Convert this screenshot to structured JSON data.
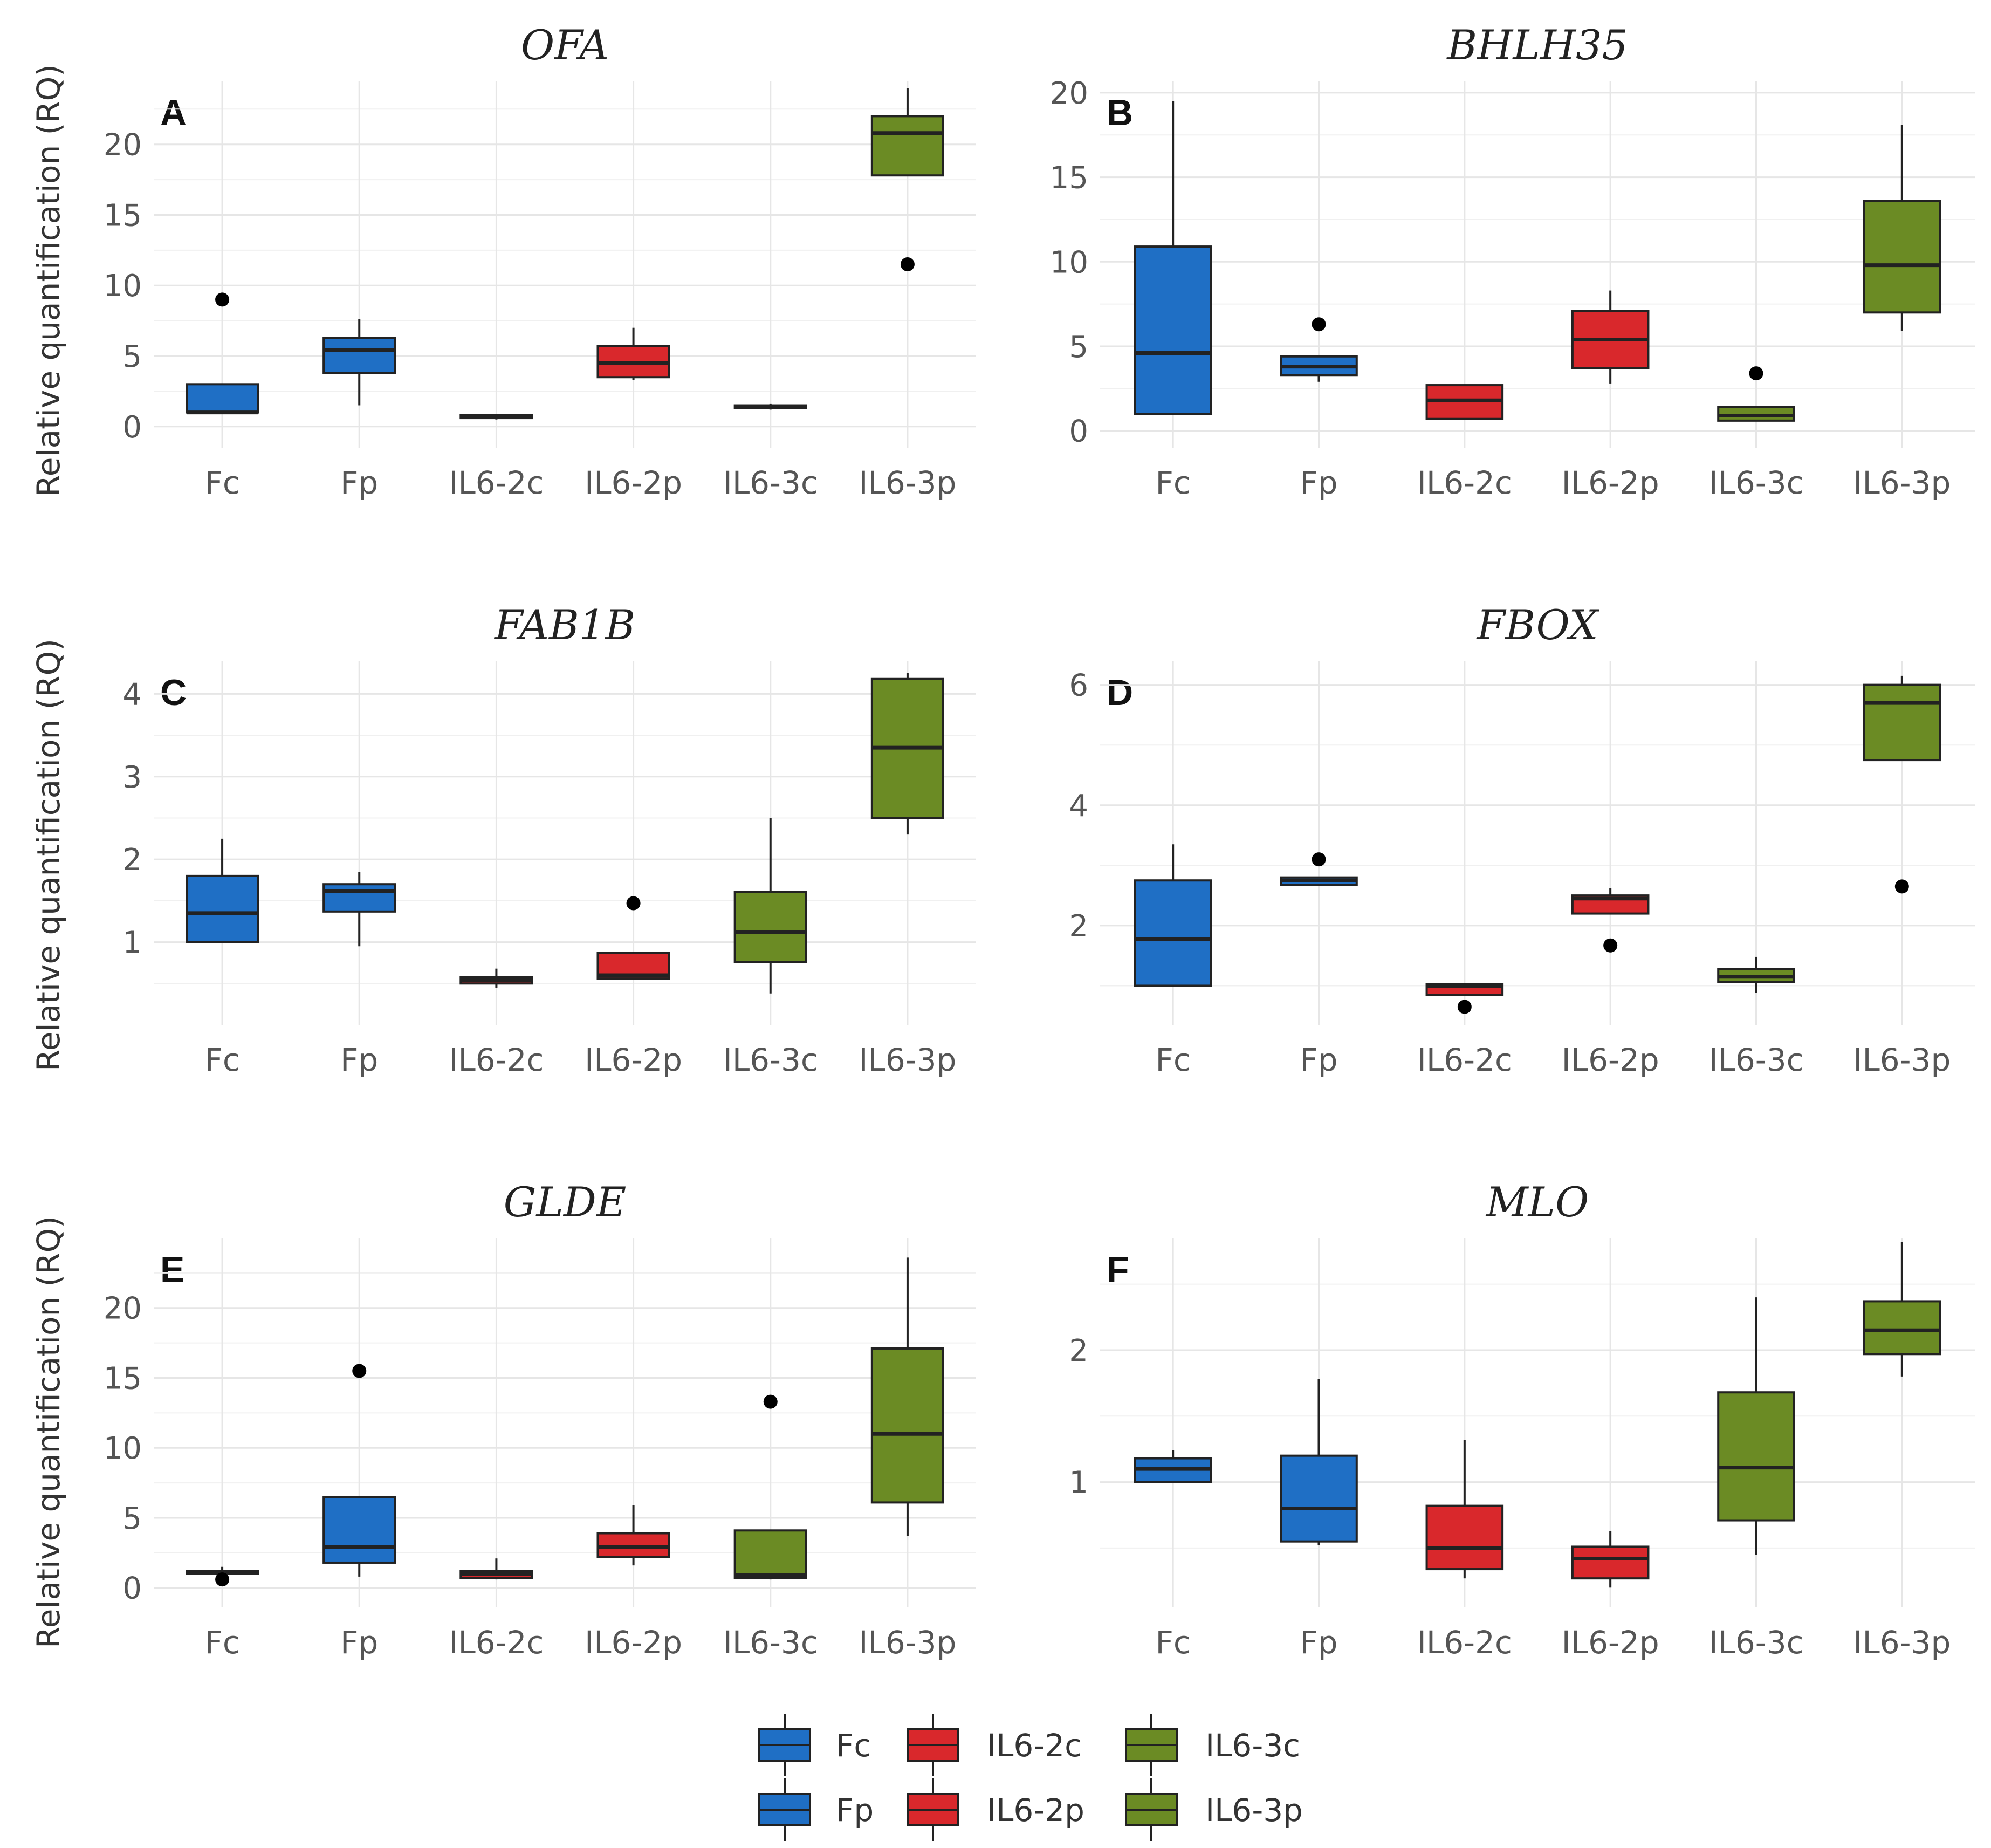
{
  "figure": {
    "y_axis_title": "Relative quantification (RQ)"
  },
  "legend": {
    "items": [
      {
        "label": "Fc",
        "color": "#1f6fc5"
      },
      {
        "label": "Fp",
        "color": "#1f6fc5"
      },
      {
        "label": "IL6-2c",
        "color": "#d9282c"
      },
      {
        "label": "IL6-2p",
        "color": "#d9282c"
      },
      {
        "label": "IL6-3c",
        "color": "#6b8b24"
      },
      {
        "label": "IL6-3p",
        "color": "#6b8b24"
      }
    ]
  },
  "colors": {
    "Fc": "#1f6fc5",
    "Fp": "#1f6fc5",
    "IL6-2c": "#d9282c",
    "IL6-2p": "#d9282c",
    "IL6-3c": "#6b8b24",
    "IL6-3p": "#6b8b24",
    "grid": "#e6e6e6",
    "box_outline": "#222222"
  },
  "chart_data": [
    {
      "type": "boxplot",
      "letter": "A",
      "title": "OFA",
      "ylabel": "Relative quantification (RQ)",
      "categories": [
        "Fc",
        "Fp",
        "IL6-2c",
        "IL6-2p",
        "IL6-3c",
        "IL6-3p"
      ],
      "ylim": [
        -1.5,
        24.5
      ],
      "yticks": [
        0,
        5,
        10,
        15,
        20
      ],
      "boxes": [
        {
          "low": 1.0,
          "q1": 1.0,
          "median": 1.0,
          "q3": 3.0,
          "high": 3.0,
          "outliers": [
            9.0
          ]
        },
        {
          "low": 1.5,
          "q1": 3.8,
          "median": 5.4,
          "q3": 6.3,
          "high": 7.6,
          "outliers": []
        },
        {
          "low": 0.5,
          "q1": 0.6,
          "median": 0.7,
          "q3": 0.8,
          "high": 0.9,
          "outliers": []
        },
        {
          "low": 3.3,
          "q1": 3.5,
          "median": 4.5,
          "q3": 5.7,
          "high": 7.0,
          "outliers": []
        },
        {
          "low": 1.2,
          "q1": 1.3,
          "median": 1.4,
          "q3": 1.5,
          "high": 1.6,
          "outliers": []
        },
        {
          "low": 17.8,
          "q1": 17.8,
          "median": 20.8,
          "q3": 22.0,
          "high": 24.0,
          "outliers": [
            11.5
          ]
        }
      ]
    },
    {
      "type": "boxplot",
      "letter": "B",
      "title": "BHLH35",
      "ylabel": "",
      "categories": [
        "Fc",
        "Fp",
        "IL6-2c",
        "IL6-2p",
        "IL6-3c",
        "IL6-3p"
      ],
      "ylim": [
        -1.0,
        20.7
      ],
      "yticks": [
        0,
        5,
        10,
        15,
        20
      ],
      "boxes": [
        {
          "low": 1.0,
          "q1": 1.0,
          "median": 4.6,
          "q3": 10.9,
          "high": 19.5,
          "outliers": []
        },
        {
          "low": 2.9,
          "q1": 3.3,
          "median": 3.8,
          "q3": 4.4,
          "high": 4.4,
          "outliers": [
            6.3
          ]
        },
        {
          "low": 0.7,
          "q1": 0.7,
          "median": 1.8,
          "q3": 2.7,
          "high": 2.7,
          "outliers": []
        },
        {
          "low": 2.8,
          "q1": 3.7,
          "median": 5.4,
          "q3": 7.1,
          "high": 8.3,
          "outliers": []
        },
        {
          "low": 0.6,
          "q1": 0.6,
          "median": 0.9,
          "q3": 1.4,
          "high": 1.4,
          "outliers": [
            3.4
          ]
        },
        {
          "low": 5.9,
          "q1": 7.0,
          "median": 9.8,
          "q3": 13.6,
          "high": 18.1,
          "outliers": []
        }
      ]
    },
    {
      "type": "boxplot",
      "letter": "C",
      "title": "FAB1B",
      "ylabel": "Relative quantification (RQ)",
      "categories": [
        "Fc",
        "Fp",
        "IL6-2c",
        "IL6-2p",
        "IL6-3c",
        "IL6-3p"
      ],
      "ylim": [
        0.0,
        4.4
      ],
      "yticks": [
        1,
        2,
        3,
        4
      ],
      "boxes": [
        {
          "low": 1.0,
          "q1": 1.0,
          "median": 1.35,
          "q3": 1.8,
          "high": 2.25,
          "outliers": []
        },
        {
          "low": 0.95,
          "q1": 1.37,
          "median": 1.62,
          "q3": 1.7,
          "high": 1.85,
          "outliers": []
        },
        {
          "low": 0.45,
          "q1": 0.5,
          "median": 0.54,
          "q3": 0.58,
          "high": 0.68,
          "outliers": []
        },
        {
          "low": 0.56,
          "q1": 0.56,
          "median": 0.6,
          "q3": 0.87,
          "high": 0.87,
          "outliers": [
            1.47
          ]
        },
        {
          "low": 0.38,
          "q1": 0.76,
          "median": 1.12,
          "q3": 1.61,
          "high": 2.5,
          "outliers": []
        },
        {
          "low": 2.3,
          "q1": 2.5,
          "median": 3.35,
          "q3": 4.18,
          "high": 4.25,
          "outliers": []
        }
      ]
    },
    {
      "type": "boxplot",
      "letter": "D",
      "title": "FBOX",
      "ylabel": "",
      "categories": [
        "Fc",
        "Fp",
        "IL6-2c",
        "IL6-2p",
        "IL6-3c",
        "IL6-3p"
      ],
      "ylim": [
        0.35,
        6.4
      ],
      "yticks": [
        2,
        4,
        6
      ],
      "boxes": [
        {
          "low": 1.0,
          "q1": 1.0,
          "median": 1.78,
          "q3": 2.75,
          "high": 3.35,
          "outliers": []
        },
        {
          "low": 2.68,
          "q1": 2.68,
          "median": 2.75,
          "q3": 2.8,
          "high": 2.8,
          "outliers": [
            3.1
          ]
        },
        {
          "low": 0.85,
          "q1": 0.85,
          "median": 1.0,
          "q3": 1.03,
          "high": 1.03,
          "outliers": [
            0.65
          ]
        },
        {
          "low": 2.2,
          "q1": 2.2,
          "median": 2.45,
          "q3": 2.5,
          "high": 2.62,
          "outliers": [
            1.67
          ]
        },
        {
          "low": 0.88,
          "q1": 1.06,
          "median": 1.15,
          "q3": 1.28,
          "high": 1.48,
          "outliers": []
        },
        {
          "low": 4.75,
          "q1": 4.75,
          "median": 5.7,
          "q3": 6.0,
          "high": 6.15,
          "outliers": [
            2.65
          ]
        }
      ]
    },
    {
      "type": "boxplot",
      "letter": "E",
      "title": "GLDE",
      "ylabel": "Relative quantification (RQ)",
      "categories": [
        "Fc",
        "Fp",
        "IL6-2c",
        "IL6-2p",
        "IL6-3c",
        "IL6-3p"
      ],
      "ylim": [
        -1.4,
        25.0
      ],
      "yticks": [
        0,
        5,
        10,
        15,
        20
      ],
      "boxes": [
        {
          "low": 0.9,
          "q1": 1.0,
          "median": 1.1,
          "q3": 1.2,
          "high": 1.5,
          "outliers": [
            0.6
          ]
        },
        {
          "low": 0.8,
          "q1": 1.8,
          "median": 2.9,
          "q3": 6.5,
          "high": 6.5,
          "outliers": [
            15.5
          ]
        },
        {
          "low": 0.6,
          "q1": 0.7,
          "median": 1.0,
          "q3": 1.2,
          "high": 2.1,
          "outliers": []
        },
        {
          "low": 1.6,
          "q1": 2.2,
          "median": 2.9,
          "q3": 3.9,
          "high": 5.9,
          "outliers": []
        },
        {
          "low": 0.6,
          "q1": 0.7,
          "median": 0.9,
          "q3": 4.1,
          "high": 4.1,
          "outliers": [
            13.3
          ]
        },
        {
          "low": 3.7,
          "q1": 6.1,
          "median": 11.0,
          "q3": 17.1,
          "high": 23.6,
          "outliers": []
        }
      ]
    },
    {
      "type": "boxplot",
      "letter": "F",
      "title": "MLO",
      "ylabel": "",
      "categories": [
        "Fc",
        "Fp",
        "IL6-2c",
        "IL6-2p",
        "IL6-3c",
        "IL6-3p"
      ],
      "ylim": [
        0.05,
        2.85
      ],
      "yticks": [
        1,
        2
      ],
      "boxes": [
        {
          "low": 1.0,
          "q1": 1.0,
          "median": 1.1,
          "q3": 1.18,
          "high": 1.24,
          "outliers": []
        },
        {
          "low": 0.52,
          "q1": 0.55,
          "median": 0.8,
          "q3": 1.2,
          "high": 1.78,
          "outliers": []
        },
        {
          "low": 0.27,
          "q1": 0.34,
          "median": 0.5,
          "q3": 0.82,
          "high": 1.32,
          "outliers": []
        },
        {
          "low": 0.2,
          "q1": 0.27,
          "median": 0.42,
          "q3": 0.51,
          "high": 0.63,
          "outliers": []
        },
        {
          "low": 0.45,
          "q1": 0.71,
          "median": 1.11,
          "q3": 1.68,
          "high": 2.4,
          "outliers": []
        },
        {
          "low": 1.8,
          "q1": 1.97,
          "median": 2.15,
          "q3": 2.37,
          "high": 2.82,
          "outliers": []
        }
      ]
    }
  ]
}
